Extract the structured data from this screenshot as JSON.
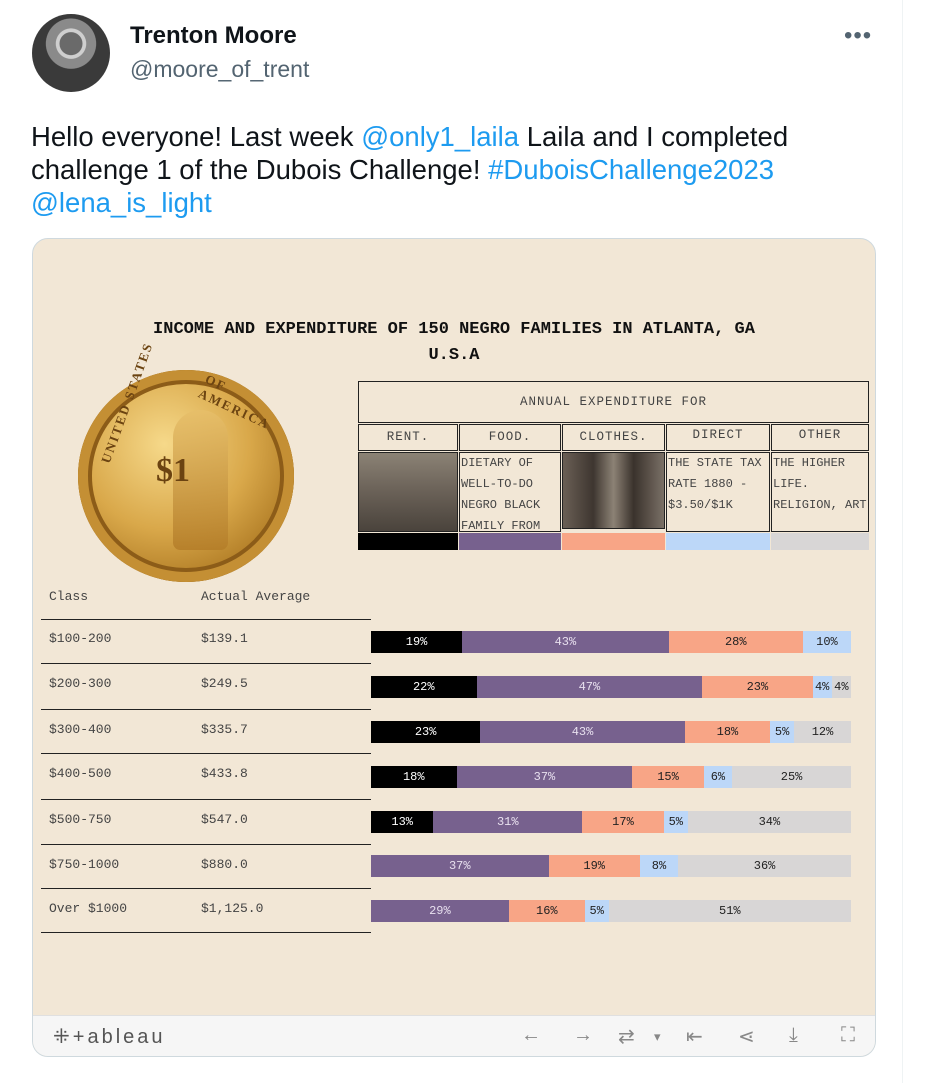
{
  "tweet": {
    "author_name": "Trenton Moore",
    "author_handle": "@moore_of_trent",
    "more_label": "•••",
    "text_1": "Hello everyone! Last week ",
    "mention_1": "@only1_laila",
    "text_2": " Laila and I completed challenge 1 of the Dubois Challenge! ",
    "hashtag": "#DuboisChallenge2023",
    "mention_2": "@lena_is_light"
  },
  "viz": {
    "title_line1": "INCOME AND EXPENDITURE OF 150 NEGRO FAMILIES IN ATLANTA, GA",
    "title_line2": "U.S.A",
    "coin": {
      "denomination": "$1",
      "rim_top": "OF AMERICA",
      "rim_left": "UNITED STATES"
    },
    "annual_header": "ANNUAL EXPENDITURE FOR",
    "categories": [
      {
        "label": "RENT.",
        "desc": "",
        "color": "#000000"
      },
      {
        "label": "FOOD.",
        "desc": "DIETARY OF WELL-TO-DO NEGRO BLACK FAMILY FROM",
        "color": "#77618e"
      },
      {
        "label": "CLOTHES.",
        "desc": "",
        "color": "#f8a586"
      },
      {
        "label": "DIRECT",
        "desc": "THE STATE TAX RATE 1880 - $3.50/$1K",
        "color": "#bcd7f8"
      },
      {
        "label": "OTHER",
        "desc": "THE HIGHER LIFE. RELIGION, ART",
        "color": "#d8d6d6"
      }
    ],
    "col_class": "Class",
    "col_average": "Actual Average",
    "rows": [
      {
        "class": "$100-200",
        "avg": "$139.1"
      },
      {
        "class": "$200-300",
        "avg": "$249.5"
      },
      {
        "class": "$300-400",
        "avg": "$335.7"
      },
      {
        "class": "$400-500",
        "avg": "$433.8"
      },
      {
        "class": "$500-750",
        "avg": "$547.0"
      },
      {
        "class": "$750-1000",
        "avg": "$880.0"
      },
      {
        "class": "Over $1000",
        "avg": "$1,125.0"
      }
    ]
  },
  "chart_data": {
    "type": "bar",
    "orientation": "horizontal-stacked-100",
    "categories": [
      "$100-200",
      "$200-300",
      "$300-400",
      "$400-500",
      "$500-750",
      "$750-1000",
      "Over $1000"
    ],
    "series": [
      {
        "name": "RENT.",
        "color": "#000000",
        "values": [
          19,
          22,
          23,
          18,
          13,
          0,
          0
        ]
      },
      {
        "name": "FOOD.",
        "color": "#77618e",
        "values": [
          43,
          47,
          43,
          37,
          31,
          37,
          29
        ]
      },
      {
        "name": "CLOTHES.",
        "color": "#f8a586",
        "values": [
          28,
          23,
          18,
          15,
          17,
          19,
          16
        ]
      },
      {
        "name": "DIRECT",
        "color": "#bcd7f8",
        "values": [
          10,
          4,
          5,
          6,
          5,
          8,
          5
        ]
      },
      {
        "name": "OTHER",
        "color": "#d8d6d6",
        "values": [
          0,
          4,
          12,
          25,
          34,
          36,
          51
        ]
      }
    ],
    "data_labels": [
      [
        "19%",
        "43%",
        "28%",
        "10%",
        ""
      ],
      [
        "22%",
        "47%",
        "23%",
        "4%",
        "4%"
      ],
      [
        "23%",
        "43%",
        "18%",
        "5%",
        "12%"
      ],
      [
        "18%",
        "37%",
        "15%",
        "6%",
        "25%"
      ],
      [
        "13%",
        "31%",
        "17%",
        "5%",
        "34%"
      ],
      [
        "",
        "37%",
        "19%",
        "8%",
        "36%"
      ],
      [
        "",
        "29%",
        "16%",
        "5%",
        "51%"
      ]
    ],
    "xlim": [
      0,
      100
    ]
  },
  "toolbar": {
    "logo": "+ableau",
    "icons": [
      "undo-icon",
      "redo-icon",
      "revert-icon",
      "reset-icon",
      "share-icon",
      "download-icon",
      "fullscreen-icon"
    ],
    "glyphs": {
      "undo": "←",
      "redo": "→",
      "revert": "⇄",
      "dropdown": "▾",
      "reset": "⇤",
      "share": "⋖",
      "download": "⤓",
      "fullscreen": "⛶"
    }
  }
}
